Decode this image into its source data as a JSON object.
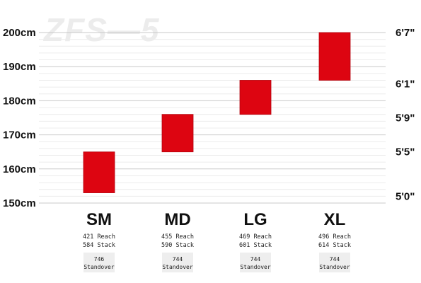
{
  "watermark": "ZFS—5",
  "colors": {
    "bar": "#dd0511",
    "bar_stroke": "#b5040e",
    "grid": "#c9c9c9",
    "minor_grid": "#ececec",
    "standover_box": "#eeeeee"
  },
  "chart_data": {
    "type": "bar",
    "subtype": "floating-range",
    "y_unit": "cm",
    "ylim": [
      150,
      200
    ],
    "left_ticks": [
      "200cm",
      "190cm",
      "180cm",
      "170cm",
      "160cm",
      "150cm"
    ],
    "left_tick_values": [
      200,
      190,
      180,
      170,
      160,
      150
    ],
    "right_ticks": [
      "6'7\"",
      "6'1\"",
      "5'9\"",
      "5'5\"",
      "5'0\""
    ],
    "right_tick_values": [
      200,
      185,
      175,
      165,
      152
    ],
    "grid": true,
    "categories": [
      "SM",
      "MD",
      "LG",
      "XL"
    ],
    "ranges": [
      [
        153,
        165
      ],
      [
        165,
        176
      ],
      [
        176,
        186
      ],
      [
        186,
        200
      ]
    ],
    "specs": [
      {
        "reach": "421 Reach",
        "stack": "584 Stack",
        "standover": "746",
        "standover_label": "Standover"
      },
      {
        "reach": "455 Reach",
        "stack": "590 Stack",
        "standover": "744",
        "standover_label": "Standover"
      },
      {
        "reach": "469 Reach",
        "stack": "601 Stack",
        "standover": "744",
        "standover_label": "Standover"
      },
      {
        "reach": "496 Reach",
        "stack": "614 Stack",
        "standover": "744",
        "standover_label": "Standover"
      }
    ]
  }
}
